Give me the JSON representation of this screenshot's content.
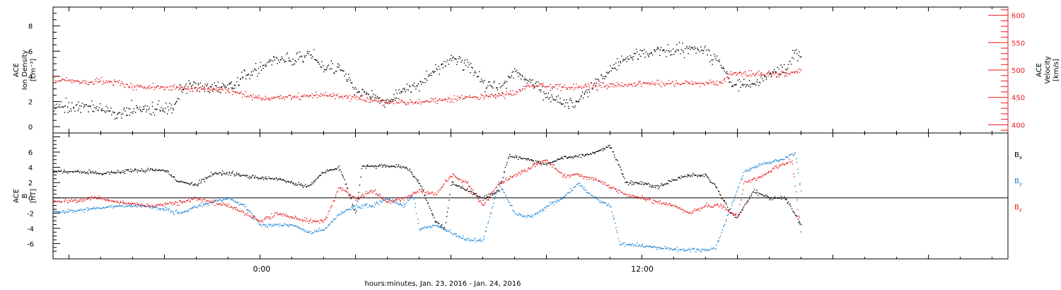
{
  "xlabel": "hours:minutes, Jan. 23, 2016 - Jan. 24, 2016",
  "x_tick_labels": [
    "0:00",
    "12:00"
  ],
  "colors": {
    "axis": "#000000",
    "black": "#000000",
    "red": "#e8191c",
    "blue": "#1a84d6"
  },
  "chart_data": [
    {
      "type": "scatter",
      "title": "",
      "x_units": "hours from 0:00 Jan. 24, 2016",
      "xlim": [
        -6.5,
        23.5
      ],
      "data_end": 17.0,
      "ylabel_left": [
        "ACE",
        "Ion Density",
        "[cm⁻³]"
      ],
      "ylabel_right": [
        "ACE",
        "Velocity",
        "[km/s]"
      ],
      "ylim_left": [
        -0.5,
        9.5
      ],
      "ylim_right": [
        385,
        615
      ],
      "yticks_left": [
        "0",
        "2",
        "4",
        "6",
        "8"
      ],
      "yticks_right": [
        "400",
        "450",
        "500",
        "550",
        "600"
      ],
      "series": [
        {
          "axis": "left",
          "color": "black",
          "points": [
            [
              -6.5,
              1.6
            ],
            [
              -5.5,
              1.7
            ],
            [
              -4.9,
              1.3
            ],
            [
              -4.5,
              1.1
            ],
            [
              -4.0,
              1.5
            ],
            [
              -3.0,
              1.5
            ],
            [
              -2.7,
              1.6
            ],
            [
              -2.5,
              3.2
            ],
            [
              -2.0,
              3.3
            ],
            [
              -1.5,
              3.0
            ],
            [
              -1.0,
              3.3
            ],
            [
              -0.5,
              4.0
            ],
            [
              0,
              4.8
            ],
            [
              0.5,
              5.5
            ],
            [
              1.0,
              5.2
            ],
            [
              1.5,
              6.0
            ],
            [
              2.0,
              4.6
            ],
            [
              2.5,
              4.8
            ],
            [
              3.0,
              3.0
            ],
            [
              3.5,
              2.5
            ],
            [
              4.0,
              2.0
            ],
            [
              4.5,
              3.0
            ],
            [
              5.0,
              3.5
            ],
            [
              5.5,
              4.5
            ],
            [
              6.0,
              5.5
            ],
            [
              6.5,
              5.0
            ],
            [
              7.0,
              3.5
            ],
            [
              7.5,
              3.0
            ],
            [
              8.0,
              4.5
            ],
            [
              8.5,
              3.5
            ],
            [
              9.0,
              2.5
            ],
            [
              9.5,
              1.8
            ],
            [
              10.0,
              2.0
            ],
            [
              10.5,
              3.5
            ],
            [
              11.0,
              4.5
            ],
            [
              11.5,
              5.5
            ],
            [
              12.0,
              5.8
            ],
            [
              12.5,
              6.2
            ],
            [
              13.0,
              6.0
            ],
            [
              13.5,
              6.3
            ],
            [
              14.0,
              6.0
            ],
            [
              14.5,
              5.0
            ],
            [
              14.8,
              3.4
            ],
            [
              15.5,
              3.4
            ],
            [
              16.0,
              4.3
            ],
            [
              16.5,
              4.5
            ],
            [
              16.8,
              6.0
            ],
            [
              17.0,
              5.5
            ]
          ],
          "spread": 0.7
        },
        {
          "axis": "right",
          "color": "red",
          "points": [
            [
              -6.5,
              483
            ],
            [
              -6.0,
              482
            ],
            [
              -5.5,
              478
            ],
            [
              -5.0,
              480
            ],
            [
              -4.5,
              479
            ],
            [
              -4.2,
              471
            ],
            [
              -3.5,
              470
            ],
            [
              -2.7,
              469
            ],
            [
              -2.3,
              466
            ],
            [
              -1.5,
              466
            ],
            [
              -1.0,
              464
            ],
            [
              -0.5,
              456
            ],
            [
              0,
              448
            ],
            [
              1.0,
              452
            ],
            [
              2.0,
              455
            ],
            [
              3.0,
              450
            ],
            [
              4.0,
              442
            ],
            [
              5.0,
              442
            ],
            [
              6.0,
              448
            ],
            [
              7.0,
              452
            ],
            [
              8.0,
              458
            ],
            [
              8.3,
              472
            ],
            [
              9.0,
              470
            ],
            [
              10.0,
              469
            ],
            [
              10.5,
              471
            ],
            [
              11.0,
              471
            ],
            [
              11.5,
              474
            ],
            [
              12.0,
              476
            ],
            [
              13.0,
              476
            ],
            [
              14.0,
              477
            ],
            [
              14.5,
              478
            ],
            [
              14.8,
              496
            ],
            [
              15.5,
              493
            ],
            [
              16.0,
              493
            ],
            [
              16.5,
              495
            ],
            [
              17.0,
              497
            ]
          ],
          "spread": 8
        }
      ]
    },
    {
      "type": "scatter",
      "title": "",
      "x_units": "hours from 0:00 Jan. 24, 2016",
      "xlim": [
        -6.5,
        23.5
      ],
      "ylabel_left": [
        "ACE",
        "B",
        "[nT]"
      ],
      "ylim": [
        -8.0,
        8.5
      ],
      "yticks": [
        "-6",
        "-4",
        "-2",
        "0",
        "2",
        "4",
        "6"
      ],
      "zero_line": 0,
      "legend_position": "right",
      "legend": [
        {
          "name": "B",
          "sub": "x",
          "color": "black"
        },
        {
          "name": "B",
          "sub": "y",
          "color": "blue"
        },
        {
          "name": "B",
          "sub": "z",
          "color": "red"
        }
      ],
      "series": [
        {
          "color": "black",
          "points": [
            [
              -6.5,
              3.5
            ],
            [
              -5.5,
              3.5
            ],
            [
              -5.0,
              3.2
            ],
            [
              -4.0,
              3.6
            ],
            [
              -3.0,
              3.7
            ],
            [
              -2.6,
              2.2
            ],
            [
              -2.0,
              1.8
            ],
            [
              -1.5,
              3.2
            ],
            [
              -1.0,
              3.3
            ],
            [
              -0.5,
              3.0
            ],
            [
              0,
              2.6
            ],
            [
              0.5,
              2.6
            ],
            [
              1.0,
              2.0
            ],
            [
              1.5,
              1.5
            ],
            [
              2.0,
              3.5
            ],
            [
              2.5,
              4.0
            ],
            [
              3.0,
              -2.0
            ],
            [
              3.2,
              4.2
            ],
            [
              4.0,
              4.3
            ],
            [
              4.6,
              4.0
            ],
            [
              5.0,
              2.0
            ],
            [
              5.5,
              -3.0
            ],
            [
              5.8,
              -4.0
            ],
            [
              6.0,
              2.0
            ],
            [
              6.5,
              1.0
            ],
            [
              7.0,
              0.0
            ],
            [
              7.5,
              1.0
            ],
            [
              7.8,
              5.5
            ],
            [
              8.5,
              5.0
            ],
            [
              9.0,
              4.5
            ],
            [
              9.5,
              5.3
            ],
            [
              10.0,
              5.5
            ],
            [
              10.5,
              6.0
            ],
            [
              11.0,
              6.8
            ],
            [
              11.5,
              2.0
            ],
            [
              12.0,
              2.0
            ],
            [
              12.5,
              1.5
            ],
            [
              13.0,
              2.5
            ],
            [
              13.5,
              3.0
            ],
            [
              14.0,
              3.0
            ],
            [
              14.3,
              1.5
            ],
            [
              14.8,
              -2.0
            ],
            [
              15.0,
              -2.5
            ],
            [
              15.5,
              1.0
            ],
            [
              16.0,
              0.0
            ],
            [
              16.5,
              0.0
            ],
            [
              17.0,
              -3.5
            ]
          ],
          "spread": 0.35
        },
        {
          "color": "blue",
          "points": [
            [
              -6.5,
              -1.8
            ],
            [
              -5.5,
              -1.5
            ],
            [
              -4.5,
              -1.0
            ],
            [
              -3.5,
              -1.0
            ],
            [
              -3.0,
              -1.5
            ],
            [
              -2.5,
              -2.0
            ],
            [
              -2.0,
              -1.0
            ],
            [
              -1.5,
              -0.5
            ],
            [
              -1.0,
              0.0
            ],
            [
              -0.5,
              -1.0
            ],
            [
              0,
              -3.5
            ],
            [
              1.0,
              -3.5
            ],
            [
              1.5,
              -4.5
            ],
            [
              2.0,
              -4.2
            ],
            [
              2.5,
              -2.0
            ],
            [
              3.0,
              -1.0
            ],
            [
              3.5,
              -1.0
            ],
            [
              4.0,
              0.0
            ],
            [
              4.5,
              -1.0
            ],
            [
              4.8,
              0.5
            ],
            [
              5.0,
              -4.0
            ],
            [
              5.5,
              -3.5
            ],
            [
              6.0,
              -4.5
            ],
            [
              6.5,
              -5.5
            ],
            [
              7.0,
              -5.5
            ],
            [
              7.5,
              2.0
            ],
            [
              8.0,
              -2.0
            ],
            [
              8.5,
              -2.5
            ],
            [
              9.0,
              -1.0
            ],
            [
              9.5,
              0.0
            ],
            [
              10.0,
              2.0
            ],
            [
              10.5,
              0.0
            ],
            [
              11.0,
              -1.0
            ],
            [
              11.3,
              -6.0
            ],
            [
              12.0,
              -6.2
            ],
            [
              13.0,
              -6.7
            ],
            [
              14.0,
              -6.8
            ],
            [
              14.3,
              -6.5
            ],
            [
              14.8,
              -1.0
            ],
            [
              15.2,
              3.5
            ],
            [
              15.8,
              4.5
            ],
            [
              16.3,
              5.0
            ],
            [
              16.8,
              6.0
            ],
            [
              17.0,
              0.5
            ]
          ],
          "spread": 0.35
        },
        {
          "color": "red",
          "points": [
            [
              -6.5,
              -0.5
            ],
            [
              -6.0,
              -0.3
            ],
            [
              -5.0,
              0.0
            ],
            [
              -4.5,
              -0.5
            ],
            [
              -3.5,
              -1.0
            ],
            [
              -2.5,
              -0.5
            ],
            [
              -2.0,
              0.0
            ],
            [
              -1.5,
              -0.5
            ],
            [
              -1.0,
              -1.0
            ],
            [
              -0.5,
              -2.0
            ],
            [
              0,
              -3.0
            ],
            [
              0.5,
              -2.0
            ],
            [
              1.0,
              -2.5
            ],
            [
              1.5,
              -3.0
            ],
            [
              2.0,
              -3.0
            ],
            [
              2.5,
              1.5
            ],
            [
              3.0,
              0.0
            ],
            [
              3.5,
              1.0
            ],
            [
              4.0,
              -0.5
            ],
            [
              4.5,
              0.0
            ],
            [
              5.0,
              1.0
            ],
            [
              5.5,
              0.5
            ],
            [
              6.0,
              3.0
            ],
            [
              6.5,
              2.0
            ],
            [
              7.0,
              -1.0
            ],
            [
              7.5,
              2.0
            ],
            [
              8.0,
              3.0
            ],
            [
              8.5,
              4.0
            ],
            [
              9.0,
              5.0
            ],
            [
              9.5,
              3.0
            ],
            [
              10.0,
              3.0
            ],
            [
              10.5,
              2.5
            ],
            [
              11.0,
              1.5
            ],
            [
              11.5,
              0.5
            ],
            [
              12.0,
              0.0
            ],
            [
              12.5,
              -0.5
            ],
            [
              13.0,
              -1.0
            ],
            [
              13.5,
              -2.0
            ],
            [
              14.0,
              -1.0
            ],
            [
              14.5,
              -1.0
            ],
            [
              15.0,
              -2.5
            ],
            [
              15.2,
              2.0
            ],
            [
              15.8,
              3.0
            ],
            [
              16.2,
              4.0
            ],
            [
              16.7,
              5.0
            ],
            [
              17.0,
              -5.0
            ]
          ],
          "spread": 0.4
        }
      ]
    }
  ]
}
